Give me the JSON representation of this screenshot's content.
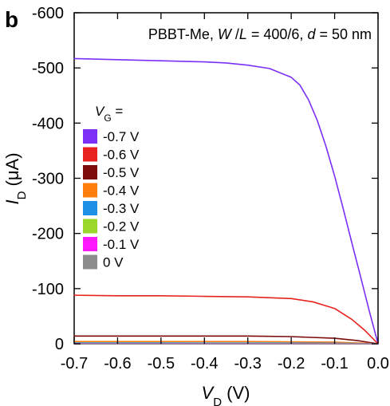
{
  "chart_data": {
    "panel_label": "b",
    "type": "line",
    "annotation": {
      "parts": [
        {
          "text": "PBBT-Me, ",
          "italic": false
        },
        {
          "text": "W",
          "italic": true
        },
        {
          "text": " /",
          "italic": false
        },
        {
          "text": "L",
          "italic": true
        },
        {
          "text": " = 400/6, ",
          "italic": false
        },
        {
          "text": "d",
          "italic": true
        },
        {
          "text": " = 50 nm",
          "italic": false
        }
      ]
    },
    "xlabel": {
      "main": "V",
      "sub": "D",
      "unit": " (V)"
    },
    "ylabel": {
      "main": "I",
      "sub": "D",
      "unit": " (μA)"
    },
    "xlim": [
      -0.7,
      0.0
    ],
    "ylim": [
      0,
      -600
    ],
    "xticks": [
      -0.7,
      -0.6,
      -0.5,
      -0.4,
      -0.3,
      -0.2,
      -0.1,
      0.0
    ],
    "yticks": [
      0,
      -100,
      -200,
      -300,
      -400,
      -500,
      -600
    ],
    "legend": {
      "title_main": "V",
      "title_sub": "G",
      "title_suffix": " ="
    },
    "series": [
      {
        "name": "-0.7 V",
        "color": "#7b2ff7",
        "points": [
          [
            -0.7,
            -517
          ],
          [
            -0.6,
            -515
          ],
          [
            -0.5,
            -513
          ],
          [
            -0.4,
            -511
          ],
          [
            -0.35,
            -509
          ],
          [
            -0.3,
            -505
          ],
          [
            -0.25,
            -499
          ],
          [
            -0.2,
            -483
          ],
          [
            -0.18,
            -469
          ],
          [
            -0.16,
            -442
          ],
          [
            -0.14,
            -405
          ],
          [
            -0.12,
            -358
          ],
          [
            -0.1,
            -304
          ],
          [
            -0.08,
            -244
          ],
          [
            -0.06,
            -182
          ],
          [
            -0.04,
            -121
          ],
          [
            -0.02,
            -59
          ],
          [
            0.0,
            0
          ]
        ]
      },
      {
        "name": "-0.6 V",
        "color": "#e8231f",
        "points": [
          [
            -0.7,
            -88
          ],
          [
            -0.6,
            -87
          ],
          [
            -0.5,
            -87
          ],
          [
            -0.4,
            -86
          ],
          [
            -0.3,
            -85
          ],
          [
            -0.2,
            -82
          ],
          [
            -0.15,
            -76
          ],
          [
            -0.1,
            -64
          ],
          [
            -0.06,
            -44
          ],
          [
            -0.03,
            -24
          ],
          [
            0.0,
            0
          ]
        ]
      },
      {
        "name": "-0.5 V",
        "color": "#7d0b0b",
        "points": [
          [
            -0.7,
            -14
          ],
          [
            -0.6,
            -14
          ],
          [
            -0.5,
            -14
          ],
          [
            -0.4,
            -14
          ],
          [
            -0.3,
            -14
          ],
          [
            -0.2,
            -13
          ],
          [
            -0.1,
            -10
          ],
          [
            -0.05,
            -6
          ],
          [
            0.0,
            0
          ]
        ]
      },
      {
        "name": "-0.4 V",
        "color": "#ff7f0e",
        "points": [
          [
            -0.7,
            -4
          ],
          [
            -0.5,
            -4
          ],
          [
            -0.3,
            -4
          ],
          [
            -0.2,
            -3.5
          ],
          [
            -0.1,
            -3
          ],
          [
            -0.05,
            -1.5
          ],
          [
            0.0,
            0
          ]
        ]
      },
      {
        "name": "-0.3 V",
        "color": "#1e90e6",
        "points": [
          [
            -0.7,
            -1.5
          ],
          [
            -0.5,
            -1.5
          ],
          [
            -0.3,
            -1.4
          ],
          [
            -0.1,
            -1
          ],
          [
            0.0,
            0
          ]
        ]
      },
      {
        "name": "-0.2 V",
        "color": "#9ad72b",
        "points": [
          [
            -0.7,
            -0.5
          ],
          [
            -0.5,
            -0.5
          ],
          [
            -0.3,
            -0.4
          ],
          [
            -0.1,
            -0.3
          ],
          [
            0.0,
            0
          ]
        ]
      },
      {
        "name": "-0.1 V",
        "color": "#ff19ff",
        "points": [
          [
            -0.7,
            -0.2
          ],
          [
            -0.4,
            -0.2
          ],
          [
            -0.2,
            -0.1
          ],
          [
            0.0,
            0
          ]
        ]
      },
      {
        "name": "0 V",
        "color": "#8c8c8c",
        "points": [
          [
            -0.7,
            0
          ],
          [
            0.0,
            0
          ]
        ]
      }
    ],
    "grid": false,
    "legend_placement": "left-middle"
  }
}
